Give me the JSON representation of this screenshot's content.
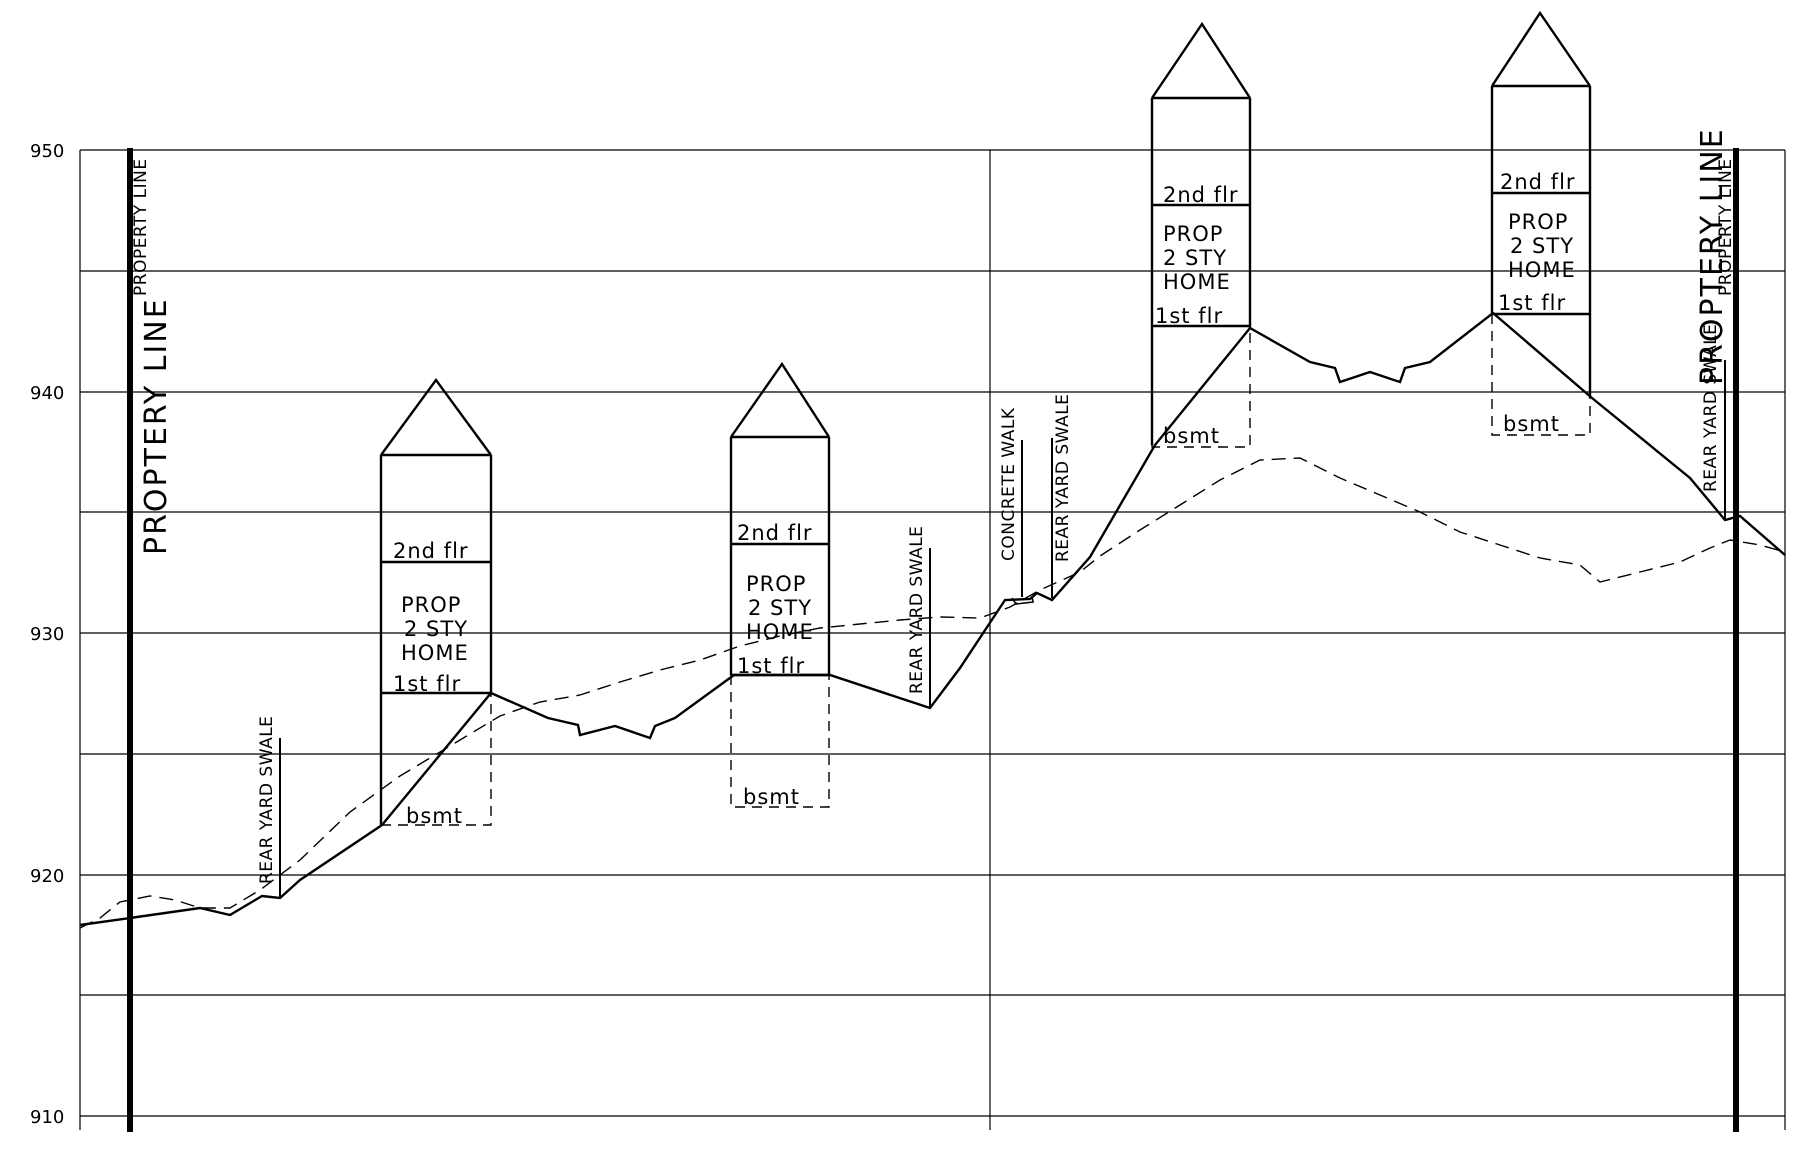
{
  "y_axis": {
    "labels": [
      "950",
      "940",
      "930",
      "920",
      "910"
    ]
  },
  "property_lines": {
    "left_large": "PROPTERY LINE",
    "left_small": "PROPERTY LINE",
    "right_large": "PROPTERY LINE",
    "right_small": "PROPERTY LINE"
  },
  "houses": [
    {
      "second_floor": "2nd flr",
      "home_lines": [
        "PROP",
        "2 STY",
        "HOME"
      ],
      "first_floor": "1st flr",
      "basement": "bsmt"
    },
    {
      "second_floor": "2nd flr",
      "home_lines": [
        "PROP",
        "2 STY",
        "HOME"
      ],
      "first_floor": "1st flr",
      "basement": "bsmt"
    },
    {
      "second_floor": "2nd flr",
      "home_lines": [
        "PROP",
        "2 STY",
        "HOME"
      ],
      "first_floor": "1st flr",
      "basement": "bsmt"
    },
    {
      "second_floor": "2nd flr",
      "home_lines": [
        "PROP",
        "2 STY",
        "HOME"
      ],
      "first_floor": "1st flr",
      "basement": "bsmt"
    }
  ],
  "callouts": {
    "swale_1": "REAR YARD SWALE",
    "swale_2": "REAR YARD SWALE",
    "concrete_walk": "CONCRETE WALK",
    "swale_3": "REAR YARD SWALE",
    "swale_4": "REAR YARD SWALE"
  }
}
